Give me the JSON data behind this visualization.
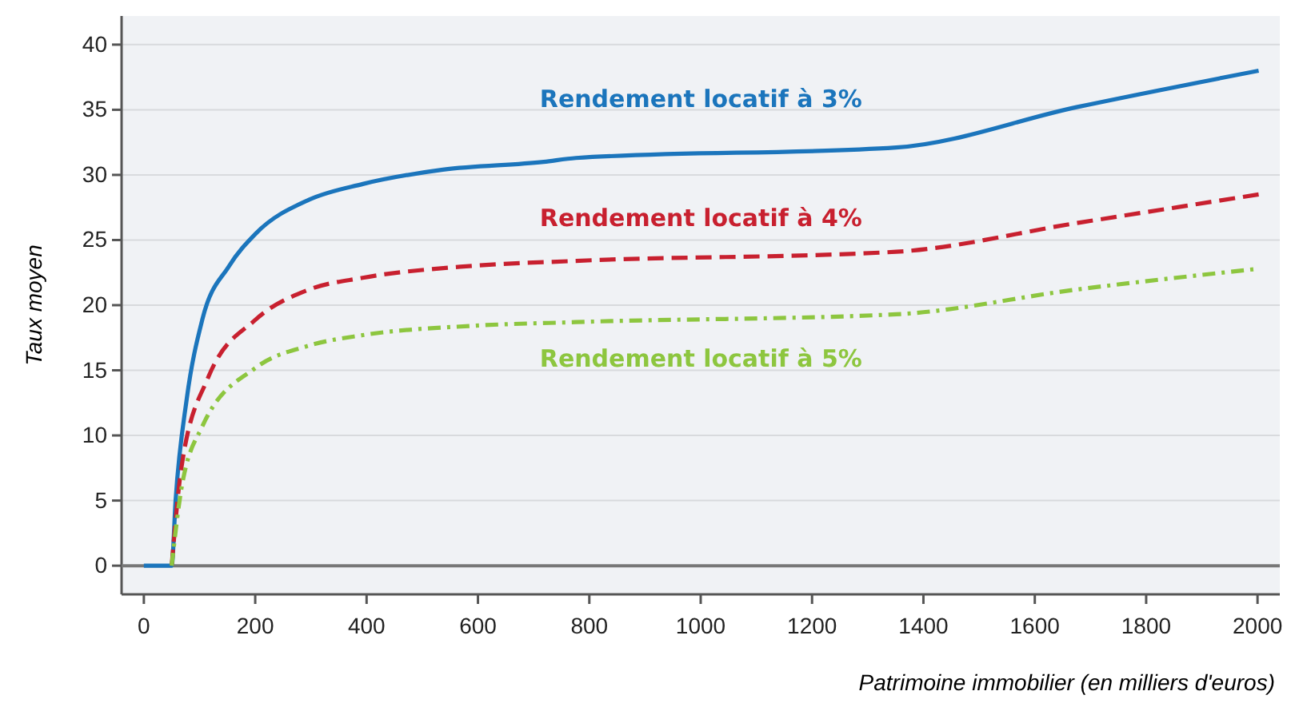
{
  "chart_data": {
    "type": "line",
    "xlabel": "Patrimoine immobilier (en milliers d'euros)",
    "ylabel": "Taux moyen",
    "xlim": [
      -40,
      2040
    ],
    "ylim": [
      -2.2,
      42.2
    ],
    "xticks": [
      0,
      200,
      400,
      600,
      800,
      1000,
      1200,
      1400,
      1600,
      1800,
      2000
    ],
    "yticks": [
      0,
      5,
      10,
      15,
      20,
      25,
      30,
      35,
      40
    ],
    "grid": "y",
    "legend": false,
    "marker": "none",
    "ref_lines": [
      {
        "axis": "y",
        "value": 0,
        "color": "#777777"
      }
    ],
    "series": [
      {
        "name": "Rendement locatif à 3%",
        "color": "#1b75bc",
        "line_style": "solid",
        "x": [
          0,
          50,
          57,
          77,
          105,
          153,
          201,
          297,
          393,
          537,
          718,
          776,
          1351,
          1675,
          2002
        ],
        "values": [
          0,
          0,
          5.0,
          12.8,
          18.9,
          23.0,
          25.5,
          28.1,
          29.3,
          30.4,
          31.0,
          31.3,
          32.1,
          35.2,
          38.0
        ]
      },
      {
        "name": "Rendement locatif à 4%",
        "color": "#c8202f",
        "line_style": "dashed",
        "x": [
          50,
          67,
          115,
          201,
          297,
          393,
          584,
          776,
          1351,
          1675,
          2002
        ],
        "values": [
          0,
          7.4,
          14.4,
          18.9,
          21.2,
          22.1,
          23.0,
          23.4,
          24.1,
          26.3,
          28.5
        ]
      },
      {
        "name": "Rendement locatif à 5%",
        "color": "#8dc63f",
        "line_style": "dotted",
        "x": [
          50,
          67,
          105,
          201,
          297,
          393,
          584,
          776,
          1351,
          1675,
          2002
        ],
        "values": [
          0,
          5.8,
          10.7,
          15.2,
          16.9,
          17.7,
          18.4,
          18.7,
          19.3,
          21.2,
          22.8
        ]
      }
    ]
  }
}
